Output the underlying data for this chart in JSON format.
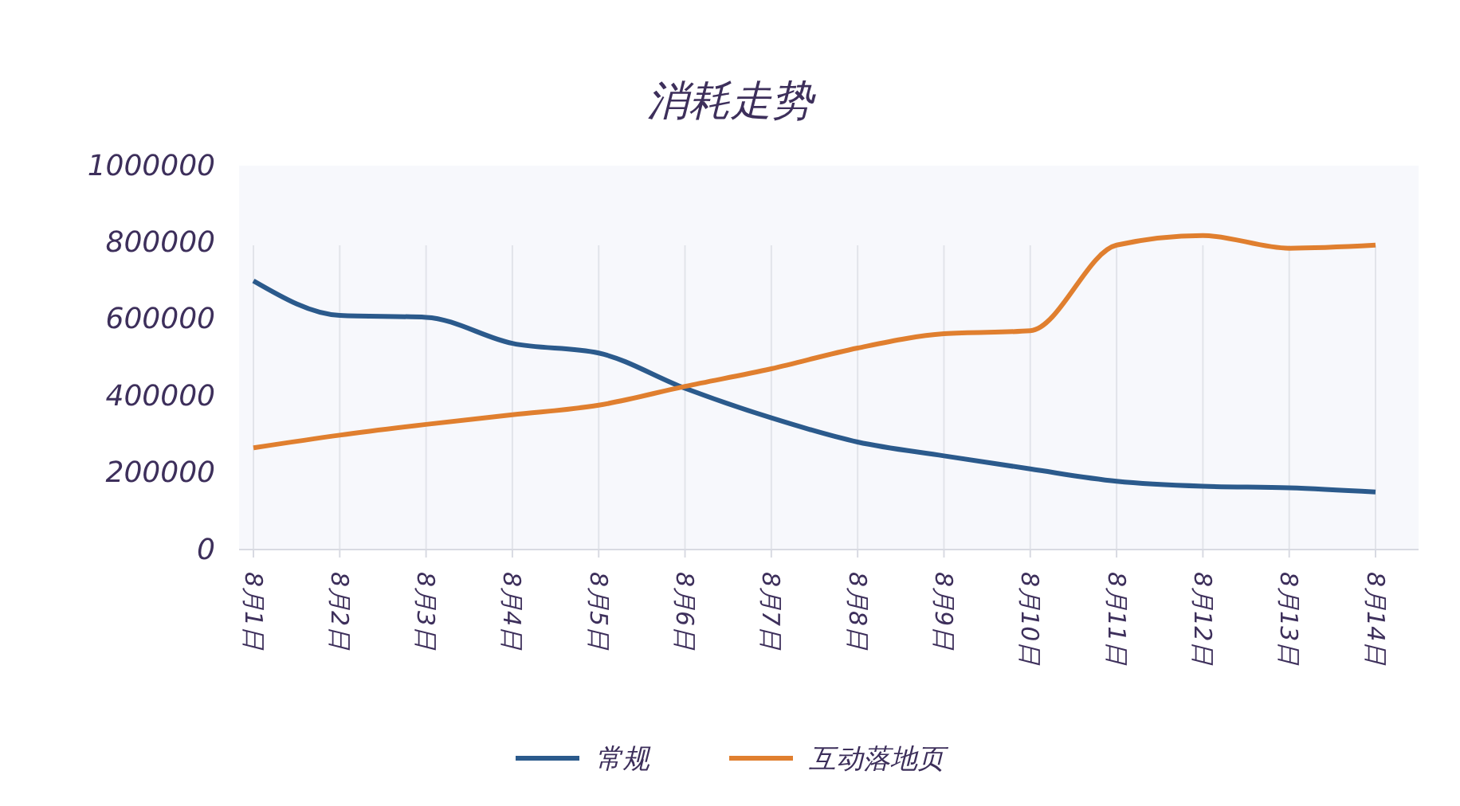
{
  "chart_data": {
    "type": "line",
    "title": "消耗走势",
    "categories": [
      "8月1日",
      "8月2日",
      "8月3日",
      "8月4日",
      "8月5日",
      "8月6日",
      "8月7日",
      "8月8日",
      "8月9日",
      "8月10日",
      "8月11日",
      "8月12日",
      "8月13日",
      "8月14日"
    ],
    "series": [
      {
        "name": "常规",
        "color": "#2b5a8c",
        "values": [
          700000,
          610000,
          605000,
          537000,
          512000,
          420000,
          343000,
          280000,
          244000,
          210000,
          178000,
          165000,
          161000,
          150000
        ]
      },
      {
        "name": "互动落地页",
        "color": "#e07f2f",
        "values": [
          265000,
          298000,
          326000,
          351000,
          376000,
          425000,
          471000,
          525000,
          562000,
          570000,
          793000,
          818000,
          785000,
          793000
        ]
      }
    ],
    "ylim": [
      0,
      1000000
    ],
    "yticks": [
      0,
      200000,
      400000,
      600000,
      800000,
      1000000
    ],
    "grid": "x",
    "legend": "bottom",
    "marker": "none",
    "line_style": "solid"
  }
}
